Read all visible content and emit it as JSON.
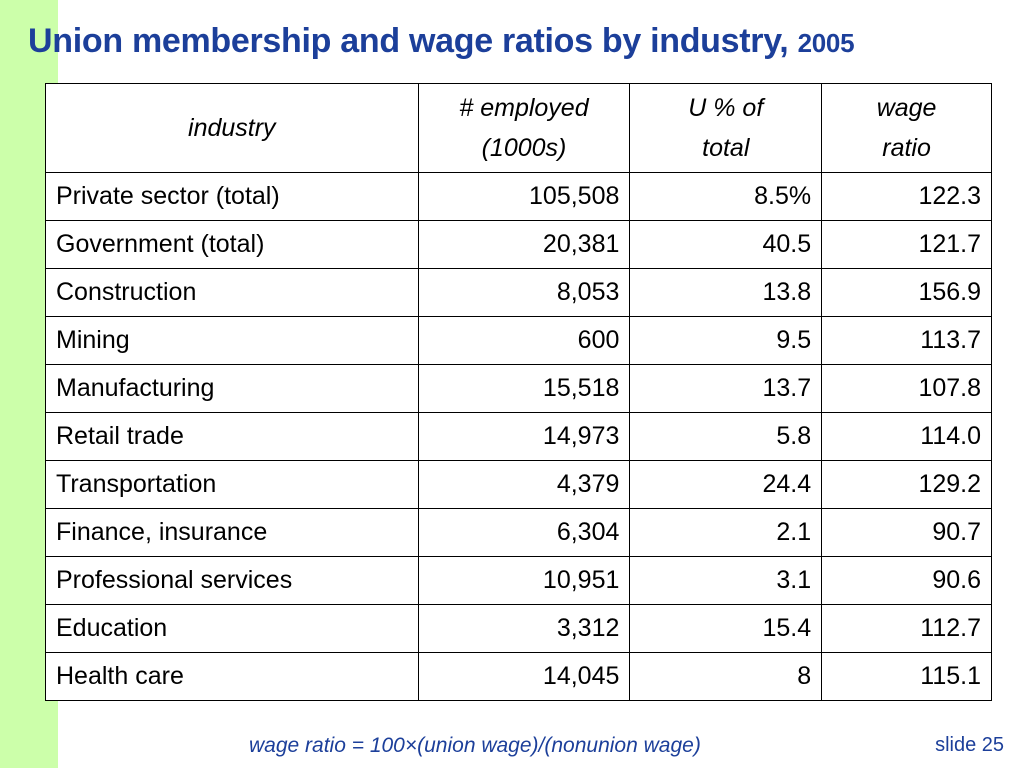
{
  "title": {
    "main": "Union membership and wage ratios by industry,",
    "year": "2005"
  },
  "table": {
    "headers": [
      {
        "line1": "industry",
        "line2": ""
      },
      {
        "line1": "# employed",
        "line2": "(1000s)"
      },
      {
        "line1": "U % of",
        "line2": "total"
      },
      {
        "line1": "wage",
        "line2": "ratio"
      }
    ],
    "rows": [
      [
        "Private sector (total)",
        "105,508",
        "8.5%",
        "122.3"
      ],
      [
        "Government (total)",
        "20,381",
        "40.5",
        "121.7"
      ],
      [
        "Construction",
        "8,053",
        "13.8",
        "156.9"
      ],
      [
        "Mining",
        "600",
        "9.5",
        "113.7"
      ],
      [
        "Manufacturing",
        "15,518",
        "13.7",
        "107.8"
      ],
      [
        "Retail trade",
        "14,973",
        "5.8",
        "114.0"
      ],
      [
        "Transportation",
        "4,379",
        "24.4",
        "129.2"
      ],
      [
        "Finance, insurance",
        "6,304",
        "2.1",
        "90.7"
      ],
      [
        "Professional services",
        "10,951",
        "3.1",
        "90.6"
      ],
      [
        "Education",
        "3,312",
        "15.4",
        "112.7"
      ],
      [
        "Health care",
        "14,045",
        "8",
        "115.1"
      ]
    ]
  },
  "footnote": "wage ratio =  100×(union wage)/(nonunion wage)",
  "slide_label": "slide 25",
  "colors": {
    "title": "#1c3f9a",
    "sidebar": "#ccffaa",
    "text": "#000000"
  }
}
